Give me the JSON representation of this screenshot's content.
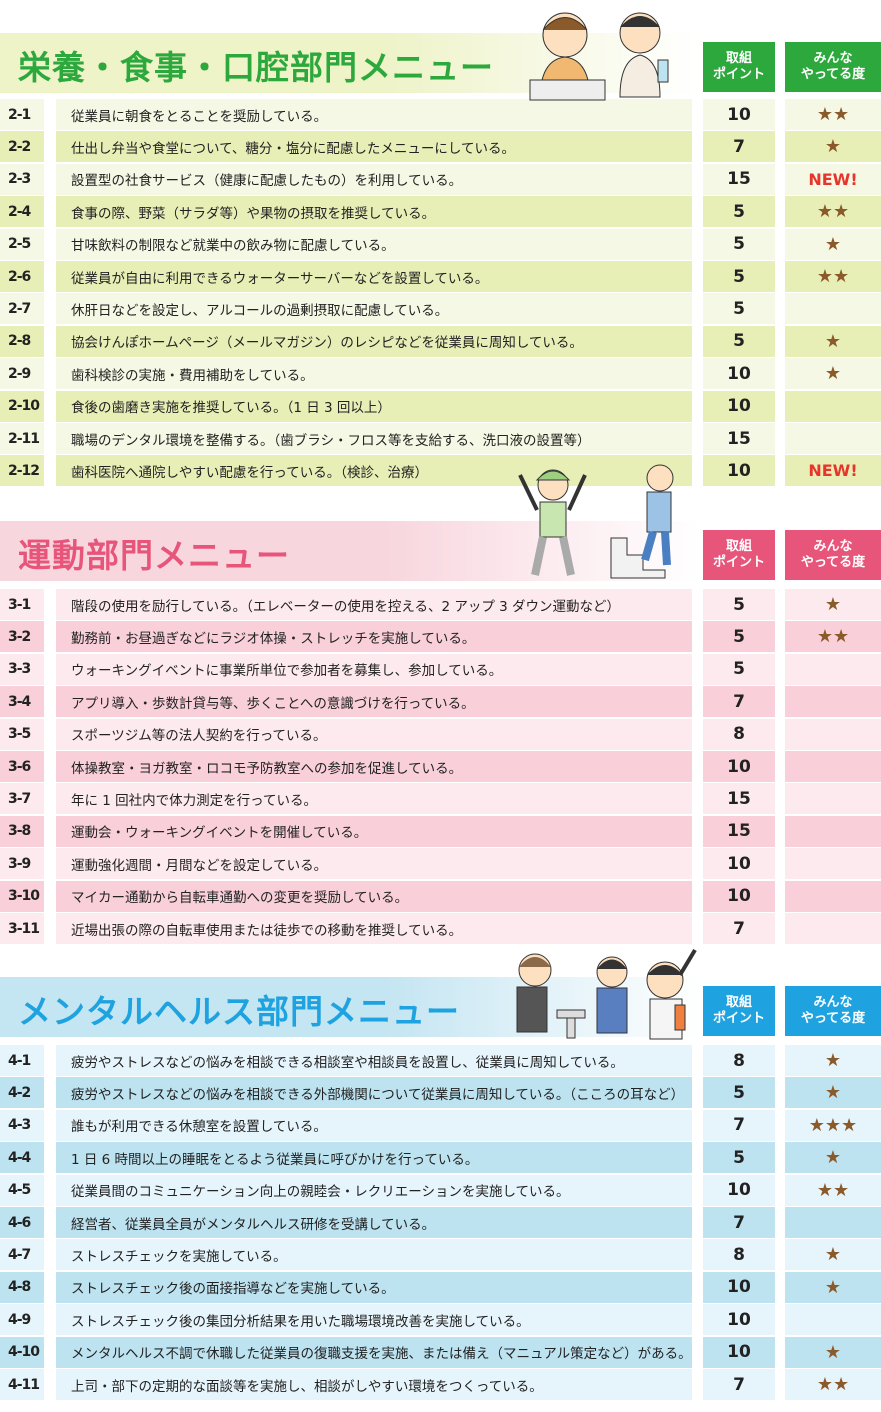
{
  "colors": {
    "star": "#8a5a2b",
    "new_badge": "#e8352c"
  },
  "sections": [
    {
      "key": "nutrition",
      "title": "栄養・食事・口腔部門メニュー",
      "accent": "#2ca83c",
      "band": "#eef3c8",
      "row_light": "#f4f8e4",
      "row_dark": "#e8efb6",
      "header_points": "取組\nポイント",
      "header_popularity": "みんな\nやってる度",
      "rows": [
        {
          "id": "2-1",
          "text": "従業員に朝食をとることを奨励している。",
          "points": "10",
          "stars": "★★"
        },
        {
          "id": "2-2",
          "text": "仕出し弁当や食堂について、糖分・塩分に配慮したメニューにしている。",
          "points": "7",
          "stars": "★"
        },
        {
          "id": "2-3",
          "text": "設置型の社食サービス（健康に配慮したもの）を利用している。",
          "points": "15",
          "stars": "NEW!"
        },
        {
          "id": "2-4",
          "text": "食事の際、野菜（サラダ等）や果物の摂取を推奨している。",
          "points": "5",
          "stars": "★★"
        },
        {
          "id": "2-5",
          "text": "甘味飲料の制限など就業中の飲み物に配慮している。",
          "points": "5",
          "stars": "★"
        },
        {
          "id": "2-6",
          "text": "従業員が自由に利用できるウォーターサーバーなどを設置している。",
          "points": "5",
          "stars": "★★"
        },
        {
          "id": "2-7",
          "text": "休肝日などを設定し、アルコールの過剰摂取に配慮している。",
          "points": "5",
          "stars": ""
        },
        {
          "id": "2-8",
          "text": "協会けんぽホームページ（メールマガジン）のレシピなどを従業員に周知している。",
          "points": "5",
          "stars": "★"
        },
        {
          "id": "2-9",
          "text": "歯科検診の実施・費用補助をしている。",
          "points": "10",
          "stars": "★"
        },
        {
          "id": "2-10",
          "text": "食後の歯磨き実施を推奨している。（1 日 3 回以上）",
          "points": "10",
          "stars": ""
        },
        {
          "id": "2-11",
          "text": "職場のデンタル環境を整備する。（歯ブラシ・フロス等を支給する、洗口液の設置等）",
          "points": "15",
          "stars": ""
        },
        {
          "id": "2-12",
          "text": "歯科医院へ通院しやすい配慮を行っている。（検診、治療）",
          "points": "10",
          "stars": "NEW!"
        }
      ]
    },
    {
      "key": "exercise",
      "title": "運動部門メニュー",
      "accent": "#e8557a",
      "band": "#f8d6de",
      "row_light": "#fdeaee",
      "row_dark": "#f9d0da",
      "header_points": "取組\nポイント",
      "header_popularity": "みんな\nやってる度",
      "rows": [
        {
          "id": "3-1",
          "text": "階段の使用を励行している。（エレベーターの使用を控える、2 アップ 3 ダウン運動など）",
          "points": "5",
          "stars": "★"
        },
        {
          "id": "3-2",
          "text": "勤務前・お昼過ぎなどにラジオ体操・ストレッチを実施している。",
          "points": "5",
          "stars": "★★"
        },
        {
          "id": "3-3",
          "text": "ウォーキングイベントに事業所単位で参加者を募集し、参加している。",
          "points": "5",
          "stars": ""
        },
        {
          "id": "3-4",
          "text": "アプリ導入・歩数計貸与等、歩くことへの意識づけを行っている。",
          "points": "7",
          "stars": ""
        },
        {
          "id": "3-5",
          "text": "スポーツジム等の法人契約を行っている。",
          "points": "8",
          "stars": ""
        },
        {
          "id": "3-6",
          "text": "体操教室・ヨガ教室・ロコモ予防教室への参加を促進している。",
          "points": "10",
          "stars": ""
        },
        {
          "id": "3-7",
          "text": "年に 1 回社内で体力測定を行っている。",
          "points": "15",
          "stars": ""
        },
        {
          "id": "3-8",
          "text": "運動会・ウォーキングイベントを開催している。",
          "points": "15",
          "stars": ""
        },
        {
          "id": "3-9",
          "text": "運動強化週間・月間などを設定している。",
          "points": "10",
          "stars": ""
        },
        {
          "id": "3-10",
          "text": "マイカー通勤から自転車通勤への変更を奨励している。",
          "points": "10",
          "stars": ""
        },
        {
          "id": "3-11",
          "text": "近場出張の際の自転車使用または徒歩での移動を推奨している。",
          "points": "7",
          "stars": ""
        }
      ]
    },
    {
      "key": "mental",
      "title": "メンタルヘルス部門メニュー",
      "accent": "#1fa3e0",
      "band": "#c4e5f2",
      "row_light": "#e6f4fc",
      "row_dark": "#bde2f0",
      "header_points": "取組\nポイント",
      "header_popularity": "みんな\nやってる度",
      "rows": [
        {
          "id": "4-1",
          "text": "疲労やストレスなどの悩みを相談できる相談室や相談員を設置し、従業員に周知している。",
          "points": "8",
          "stars": "★"
        },
        {
          "id": "4-2",
          "text": "疲労やストレスなどの悩みを相談できる外部機関について従業員に周知している。（こころの耳など）",
          "points": "5",
          "stars": "★"
        },
        {
          "id": "4-3",
          "text": "誰もが利用できる休憩室を設置している。",
          "points": "7",
          "stars": "★★★"
        },
        {
          "id": "4-4",
          "text": "1 日 6 時間以上の睡眠をとるよう従業員に呼びかけを行っている。",
          "points": "5",
          "stars": "★"
        },
        {
          "id": "4-5",
          "text": "従業員間のコミュニケーション向上の親睦会・レクリエーションを実施している。",
          "points": "10",
          "stars": "★★"
        },
        {
          "id": "4-6",
          "text": "経営者、従業員全員がメンタルヘルス研修を受講している。",
          "points": "7",
          "stars": ""
        },
        {
          "id": "4-7",
          "text": "ストレスチェックを実施している。",
          "points": "8",
          "stars": "★"
        },
        {
          "id": "4-8",
          "text": "ストレスチェック後の面接指導などを実施している。",
          "points": "10",
          "stars": "★"
        },
        {
          "id": "4-9",
          "text": "ストレスチェック後の集団分析結果を用いた職場環境改善を実施している。",
          "points": "10",
          "stars": ""
        },
        {
          "id": "4-10",
          "text": "メンタルヘルス不調で休職した従業員の復職支援を実施、または備え（マニュアル策定など）がある。",
          "points": "10",
          "stars": "★"
        },
        {
          "id": "4-11",
          "text": "上司・部下の定期的な面談等を実施し、相談がしやすい環境をつくっている。",
          "points": "7",
          "stars": "★★"
        }
      ]
    }
  ]
}
